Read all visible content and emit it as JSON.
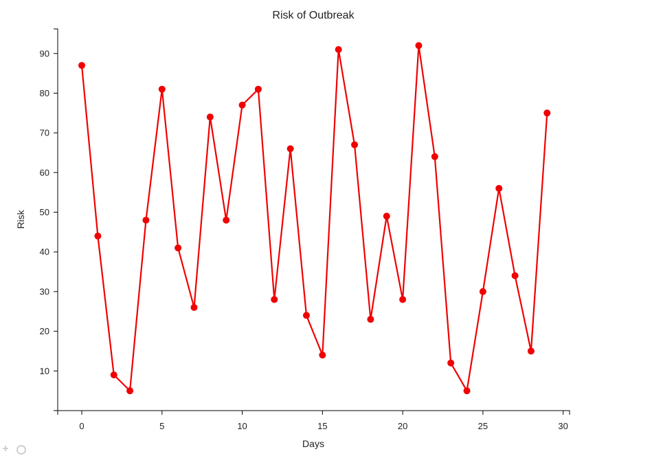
{
  "chart_data": {
    "type": "line",
    "title": "Risk of Outbreak",
    "xlabel": "Days",
    "ylabel": "Risk",
    "x": [
      0,
      1,
      2,
      3,
      4,
      5,
      6,
      7,
      8,
      9,
      10,
      11,
      12,
      13,
      14,
      15,
      16,
      17,
      18,
      19,
      20,
      21,
      22,
      23,
      24,
      25,
      26,
      27,
      28,
      29
    ],
    "series": [
      {
        "values": [
          87,
          44,
          9,
          5,
          48,
          81,
          41,
          26,
          74,
          48,
          77,
          81,
          28,
          66,
          24,
          14,
          91,
          67,
          23,
          49,
          28,
          92,
          64,
          12,
          5,
          30,
          56,
          34,
          15,
          75
        ]
      }
    ],
    "xlim": [
      -1.5,
      30.4
    ],
    "ylim": [
      0,
      96.2
    ],
    "xticks": [
      0,
      5,
      10,
      15,
      20,
      25,
      30
    ],
    "yticks": [
      10,
      20,
      30,
      40,
      50,
      60,
      70,
      80,
      90
    ],
    "grid": false,
    "line_color": "#f00000"
  }
}
